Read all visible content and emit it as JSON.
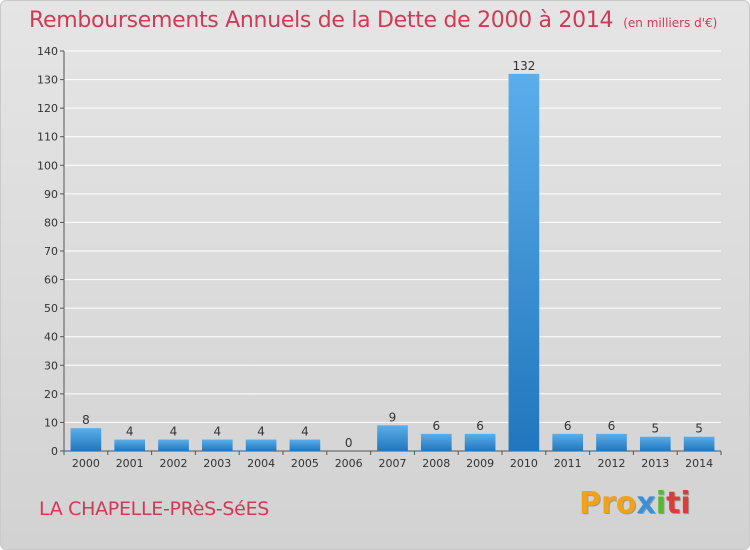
{
  "title": "Remboursements Annuels de la Dette de 2000 à 2014",
  "subtitle": "(en milliers d'€)",
  "commune": "LA CHAPELLE-PRèS-SéES",
  "brand": {
    "p1": "Pro",
    "p2": "x",
    "p3": "i",
    "p4": "ti"
  },
  "colors": {
    "bar_top": "#5aaeea",
    "bar_bottom": "#2176bd",
    "title": "#d03a57",
    "grid": "#ffffff"
  },
  "chart_data": {
    "type": "bar",
    "categories": [
      "2000",
      "2001",
      "2002",
      "2003",
      "2004",
      "2005",
      "2006",
      "2007",
      "2008",
      "2009",
      "2010",
      "2011",
      "2012",
      "2013",
      "2014"
    ],
    "values": [
      8,
      4,
      4,
      4,
      4,
      4,
      0,
      9,
      6,
      6,
      132,
      6,
      6,
      5,
      5
    ],
    "value_labels": [
      "8",
      "4",
      "4",
      "4",
      "4",
      "4",
      "0",
      "9",
      "6",
      "6",
      "132",
      "6",
      "6",
      "5",
      "5"
    ],
    "ylim": [
      0,
      140
    ],
    "yticks": [
      0,
      10,
      20,
      30,
      40,
      50,
      60,
      70,
      80,
      90,
      100,
      110,
      120,
      130,
      140
    ],
    "grid": true,
    "title": "Remboursements Annuels de la Dette de 2000 à 2014",
    "xlabel": "",
    "ylabel": ""
  }
}
